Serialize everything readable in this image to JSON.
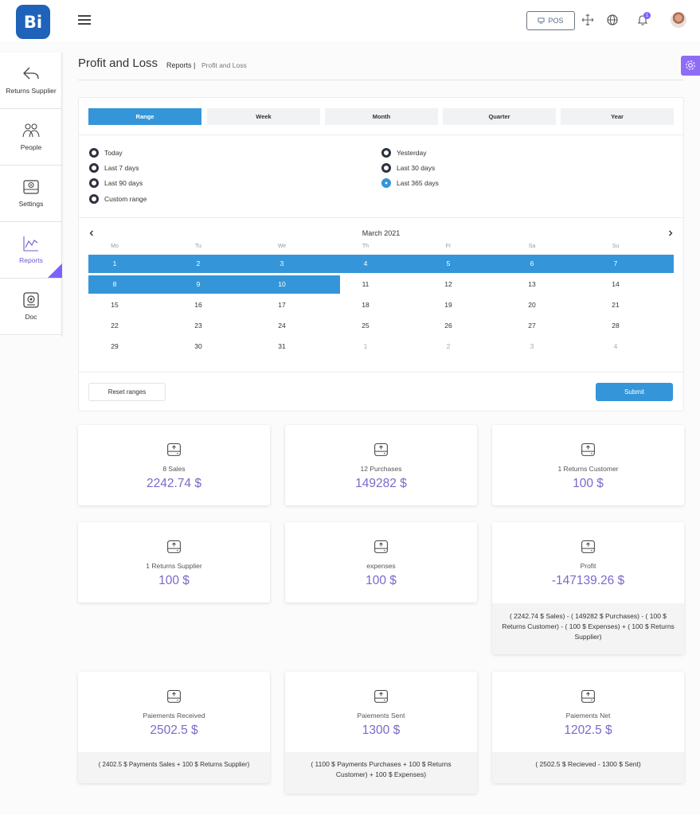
{
  "header": {
    "logo_text": "Bi",
    "pos_label": "POS",
    "notification_count": "1"
  },
  "sidebar": {
    "items": [
      {
        "label": "Returns Supplier",
        "icon": "reply-arrow-icon"
      },
      {
        "label": "People",
        "icon": "people-icon"
      },
      {
        "label": "Settings",
        "icon": "settings-icon"
      },
      {
        "label": "Reports",
        "icon": "line-chart-icon"
      },
      {
        "label": "Doc",
        "icon": "document-icon"
      }
    ]
  },
  "page": {
    "title": "Profit and Loss",
    "breadcrumb": [
      "Reports |",
      "Profit and Loss"
    ]
  },
  "date_picker": {
    "tabs": [
      "Range",
      "Week",
      "Month",
      "Quarter",
      "Year"
    ],
    "active_tab": "Range",
    "options_left": [
      "Today",
      "Last 7 days",
      "Last 90 days",
      "Custom range"
    ],
    "options_right": [
      "Yesterday",
      "Last 30 days",
      "Last 365 days"
    ],
    "selected_option": "Last 365 days",
    "month": "March 2021",
    "weekdays": [
      "Mo",
      "Tu",
      "We",
      "Th",
      "Fr",
      "Sa",
      "Su"
    ],
    "weeks": [
      [
        "1",
        "2",
        "3",
        "4",
        "5",
        "6",
        "7"
      ],
      [
        "8",
        "9",
        "10",
        "11",
        "12",
        "13",
        "14"
      ],
      [
        "15",
        "16",
        "17",
        "18",
        "19",
        "20",
        "21"
      ],
      [
        "22",
        "23",
        "24",
        "25",
        "26",
        "27",
        "28"
      ],
      [
        "29",
        "30",
        "31",
        "1",
        "2",
        "3",
        "4"
      ]
    ],
    "selected_range": "March 1 – March 10",
    "reset_label": "Reset ranges",
    "submit_label": "Submit"
  },
  "stats": {
    "sales": {
      "label": "8 Sales",
      "value": "2242.74 $"
    },
    "purchases": {
      "label": "12 Purchases",
      "value": "149282 $"
    },
    "returns_customer": {
      "label": "1 Returns Customer",
      "value": "100 $"
    },
    "returns_supplier": {
      "label": "1 Returns Supplier",
      "value": "100 $"
    },
    "expenses": {
      "label": "expenses",
      "value": "100 $"
    },
    "profit": {
      "label": "Profit",
      "value": "-147139.26 $",
      "formula": "( 2242.74 $ Sales) - ( 149282 $ Purchases) - ( 100 $ Returns Customer) - ( 100 $ Expenses) + ( 100 $ Returns Supplier)"
    },
    "payments_received": {
      "label": "Paiements Received",
      "value": "2502.5 $",
      "formula": "( 2402.5 $ Payments Sales + 100 $ Returns Supplier)"
    },
    "payments_sent": {
      "label": "Paiements Sent",
      "value": "1300 $",
      "formula": "( 1100 $ Payments Purchases + 100 $ Returns Customer) + 100 $ Expenses)"
    },
    "payments_net": {
      "label": "Paiements Net",
      "value": "1202.5 $",
      "formula": "( 2502.5 $ Recieved - 1300 $ Sent)"
    }
  },
  "colors": {
    "brand": "#1e63b9",
    "accent": "#3496d9",
    "purple": "#7b61ff",
    "value_text": "#7d68c9"
  }
}
